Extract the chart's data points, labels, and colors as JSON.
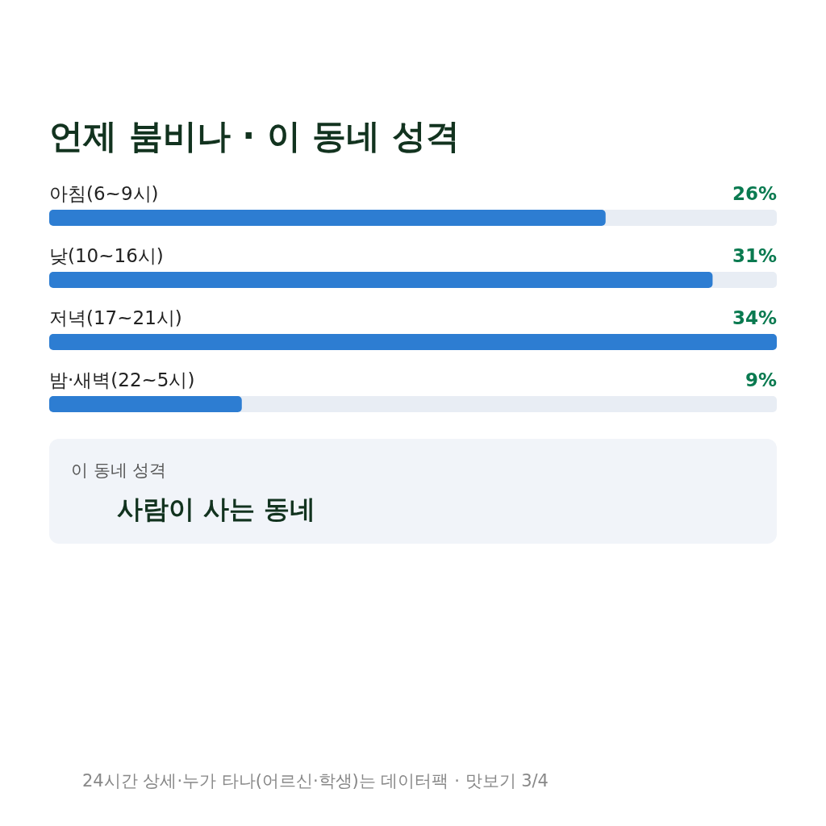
{
  "chart_data": {
    "type": "bar",
    "orientation": "horizontal",
    "title": "언제 붐비나 · 이 동네 성격",
    "categories": [
      "아침(6~9시)",
      "낮(10~16시)",
      "저녁(17~21시)",
      "밤·새벽(22~5시)"
    ],
    "values": [
      26,
      31,
      34,
      9
    ],
    "value_labels": [
      "26%",
      "31%",
      "34%",
      "9%"
    ],
    "color": "#2d7dd2",
    "annotations": [
      "이 동네 성격",
      "사람이 사는 동네",
      "24시간 상세·누가 타나(어르신·학생)는 데이터팩 · 맛보기 3/4"
    ]
  }
}
